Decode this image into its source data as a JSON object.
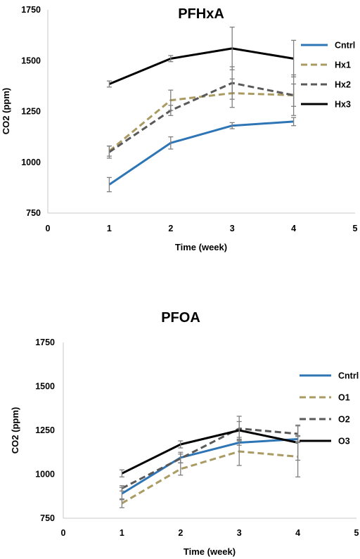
{
  "chart_data": [
    {
      "type": "line",
      "title": "PFHxA",
      "xlabel": "Time (week)",
      "ylabel": "CO2 (ppm)",
      "xlim": [
        0,
        5
      ],
      "ylim": [
        750,
        1750
      ],
      "xticks": [
        "0",
        "1",
        "2",
        "3",
        "4",
        "5"
      ],
      "yticks": [
        "750",
        "1000",
        "1250",
        "1500",
        "1750"
      ],
      "legend_position": "right",
      "x": [
        1,
        2,
        3,
        4
      ],
      "series": [
        {
          "name": "Cntrl",
          "color": "#2E75B6",
          "dash": "solid",
          "values": [
            890,
            1095,
            1180,
            1200
          ],
          "errors": [
            35,
            30,
            15,
            20
          ]
        },
        {
          "name": "Hx1",
          "color": "#A99B62",
          "dash": "dashed",
          "values": [
            1055,
            1305,
            1340,
            1330
          ],
          "errors": [
            25,
            50,
            70,
            55
          ]
        },
        {
          "name": "Hx2",
          "color": "#595959",
          "dash": "dashed",
          "values": [
            1050,
            1255,
            1390,
            1330
          ],
          "errors": [
            30,
            25,
            80,
            100
          ]
        },
        {
          "name": "Hx3",
          "color": "#000000",
          "dash": "solid",
          "values": [
            1385,
            1510,
            1560,
            1510
          ],
          "errors": [
            15,
            15,
            105,
            90
          ]
        }
      ]
    },
    {
      "type": "line",
      "title": "PFOA",
      "xlabel": "Time (week)",
      "ylabel": "CO2 (ppm)",
      "xlim": [
        0,
        5
      ],
      "ylim": [
        750,
        1750
      ],
      "xticks": [
        "0",
        "1",
        "2",
        "3",
        "4",
        "5"
      ],
      "yticks": [
        "750",
        "1000",
        "1250",
        "1500",
        "1750"
      ],
      "legend_position": "right",
      "x": [
        1,
        2,
        3,
        4
      ],
      "series": [
        {
          "name": "Cntrl",
          "color": "#2E75B6",
          "dash": "solid",
          "values": [
            890,
            1095,
            1180,
            1200
          ],
          "errors": [
            35,
            30,
            15,
            20
          ]
        },
        {
          "name": "O1",
          "color": "#A99B62",
          "dash": "dashed",
          "values": [
            835,
            1030,
            1130,
            1100
          ],
          "errors": [
            25,
            35,
            80,
            115
          ]
        },
        {
          "name": "O2",
          "color": "#595959",
          "dash": "dashed",
          "values": [
            920,
            1090,
            1260,
            1230
          ],
          "errors": [
            15,
            25,
            70,
            45
          ]
        },
        {
          "name": "O3",
          "color": "#000000",
          "dash": "solid",
          "values": [
            1005,
            1170,
            1250,
            1180
          ],
          "errors": [
            20,
            20,
            50,
            100
          ]
        }
      ]
    }
  ]
}
